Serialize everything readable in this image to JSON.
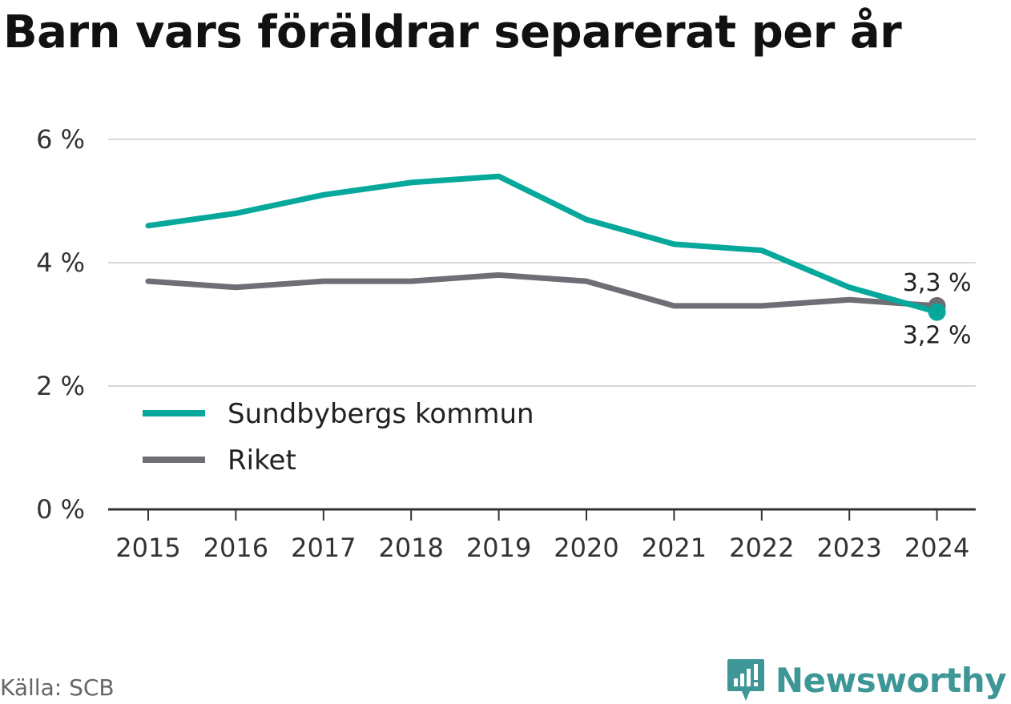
{
  "colors": {
    "sundbyberg": "#05a89a",
    "riket": "#6e6e75",
    "grid": "#d8d8d8",
    "axis": "#333333",
    "brand": "#3e9696"
  },
  "source": "Källa: SCB",
  "brand": {
    "name": "Newsworthy",
    "icon": "newsworthy-logo-icon"
  },
  "chart_data": {
    "type": "line",
    "title": "Barn vars föräldrar separerat per år",
    "x": [
      2015,
      2016,
      2017,
      2018,
      2019,
      2020,
      2021,
      2022,
      2023,
      2024
    ],
    "x_tick_labels": [
      "2015",
      "2016",
      "2017",
      "2018",
      "2019",
      "2020",
      "2021",
      "2022",
      "2023",
      "2024"
    ],
    "ylim": [
      0,
      6
    ],
    "y_ticks": [
      0,
      2,
      4,
      6
    ],
    "y_tick_labels": [
      "0 %",
      "2 %",
      "4 %",
      "6 %"
    ],
    "grid": true,
    "legend": "bottom-left",
    "series": [
      {
        "name": "Sundbybergs kommun",
        "values": [
          4.6,
          4.8,
          5.1,
          5.3,
          5.4,
          4.7,
          4.3,
          4.2,
          3.6,
          3.2
        ],
        "end_label": "3,2 %"
      },
      {
        "name": "Riket",
        "values": [
          3.7,
          3.6,
          3.7,
          3.7,
          3.8,
          3.7,
          3.3,
          3.3,
          3.4,
          3.3
        ],
        "end_label": "3,3 %"
      }
    ]
  }
}
